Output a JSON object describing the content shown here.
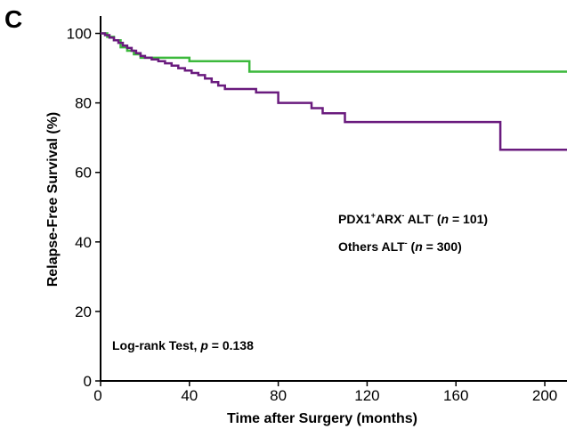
{
  "panel_label": "C",
  "annotations": {
    "legend_line1": {
      "prefix": "PDX1",
      "sup1": "+",
      "mid": "ARX",
      "sup2": "-",
      "mid2": " ALT",
      "sup3": "-",
      "pre_n": " (",
      "n": "n",
      "post_n": " = 101)"
    },
    "legend_line2": {
      "prefix": "Others ALT",
      "sup1": "-",
      "pre_n": " (",
      "n": "n",
      "post_n": " = 300)"
    },
    "stats": {
      "prefix": "Log-rank Test, ",
      "p": "p",
      "post": " = 0.138"
    }
  },
  "chart_data": {
    "type": "line",
    "subtype": "kaplan-meier step",
    "title": "",
    "xlabel": "Time after Surgery (months)",
    "ylabel": "Relapse-Free Survival (%)",
    "xlim": [
      0,
      210
    ],
    "ylim": [
      0,
      105
    ],
    "xticks": [
      0,
      40,
      80,
      120,
      160,
      200
    ],
    "yticks": [
      0,
      20,
      40,
      60,
      80,
      100
    ],
    "grid": false,
    "legend_placement": "right-center (text annotation)",
    "series": [
      {
        "color": "#3cb93c",
        "x": [
          0,
          3,
          6,
          9,
          12,
          15,
          18,
          20,
          25,
          40,
          67,
          210
        ],
        "y": [
          100,
          99,
          98,
          96,
          95,
          94,
          93,
          93,
          93,
          92,
          89,
          89
        ]
      },
      {
        "color": "#6a1b7e",
        "x": [
          0,
          2,
          4,
          6,
          8,
          10,
          12,
          14,
          16,
          18,
          20,
          23,
          26,
          29,
          32,
          35,
          38,
          41,
          44,
          47,
          50,
          53,
          56,
          60,
          65,
          70,
          80,
          95,
          100,
          110,
          130,
          180,
          210
        ],
        "y": [
          100,
          99.5,
          98.8,
          98,
          97.3,
          96.5,
          95.8,
          95,
          94.3,
          93.5,
          93,
          92.5,
          92,
          91.4,
          90.7,
          90,
          89.3,
          88.6,
          88,
          87,
          86,
          85,
          84,
          84,
          84,
          83,
          80,
          78.5,
          77,
          74.5,
          74.5,
          66.5,
          66.5
        ]
      }
    ]
  }
}
